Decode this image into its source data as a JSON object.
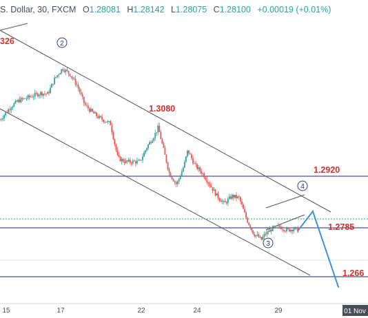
{
  "header": {
    "symbol": "S. Dollar, 30, FXCM",
    "open_label": "O",
    "open": "1.28081",
    "high_label": "H",
    "high": "1.28142",
    "low_label": "L",
    "low": "1.28075",
    "close_label": "C",
    "close": "1.28100",
    "change": "+0.00019 (+0.01%)"
  },
  "colors": {
    "candle_up": "#26a69a",
    "candle_down": "#ef5350",
    "level_line": "#1a237e",
    "channel_line": "#555555",
    "projection": "#3d8fd9",
    "level_label": "#d32f2f"
  },
  "chart_data": {
    "type": "candlestick",
    "x_ticks": [
      "15",
      "17",
      "22",
      "24",
      "29"
    ],
    "x_highlight": "01 Nov",
    "levels": [
      {
        "value": 1.292,
        "label": "1.2920"
      },
      {
        "value": 1.2785,
        "label": "1.2785"
      },
      {
        "value": 1.266,
        "label": "1.266"
      }
    ],
    "annotations": [
      {
        "label": "326",
        "value": 1.3326
      },
      {
        "label": "1.3080",
        "value": 1.308
      }
    ],
    "wave_labels": [
      "2",
      "3",
      "4"
    ],
    "price_path": [
      [
        0,
        1.31
      ],
      [
        3,
        1.3135
      ],
      [
        5,
        1.315
      ],
      [
        8,
        1.316
      ],
      [
        11,
        1.317
      ],
      [
        13,
        1.3168
      ],
      [
        15,
        1.321
      ],
      [
        17,
        1.3235
      ],
      [
        19,
        1.322
      ],
      [
        21,
        1.319
      ],
      [
        23,
        1.314
      ],
      [
        25,
        1.312
      ],
      [
        27,
        1.3105
      ],
      [
        30,
        1.309
      ],
      [
        32,
        1.3
      ],
      [
        34,
        1.299
      ],
      [
        38,
        1.299
      ],
      [
        40,
        1.303
      ],
      [
        42,
        1.306
      ],
      [
        43,
        1.308
      ],
      [
        44,
        1.304
      ],
      [
        46,
        1.296
      ],
      [
        48,
        1.293
      ],
      [
        50,
        1.298
      ],
      [
        51,
        1.302
      ],
      [
        53,
        1.298
      ],
      [
        55,
        1.296
      ],
      [
        57,
        1.293
      ],
      [
        59,
        1.29
      ],
      [
        61,
        1.288
      ],
      [
        63,
        1.29
      ],
      [
        65,
        1.2895
      ],
      [
        67,
        1.284
      ],
      [
        69,
        1.28
      ],
      [
        70,
        1.2795
      ],
      [
        71,
        1.2785
      ],
      [
        72,
        1.28
      ],
      [
        74,
        1.2815
      ],
      [
        76,
        1.282
      ],
      [
        78,
        1.281
      ],
      [
        80,
        1.2815
      ],
      [
        81,
        1.281
      ]
    ],
    "projection": [
      [
        81,
        1.281
      ],
      [
        85,
        1.286
      ],
      [
        92,
        1.266
      ]
    ],
    "y_range": [
      1.262,
      1.3371
    ],
    "x_range": [
      0,
      100
    ]
  }
}
